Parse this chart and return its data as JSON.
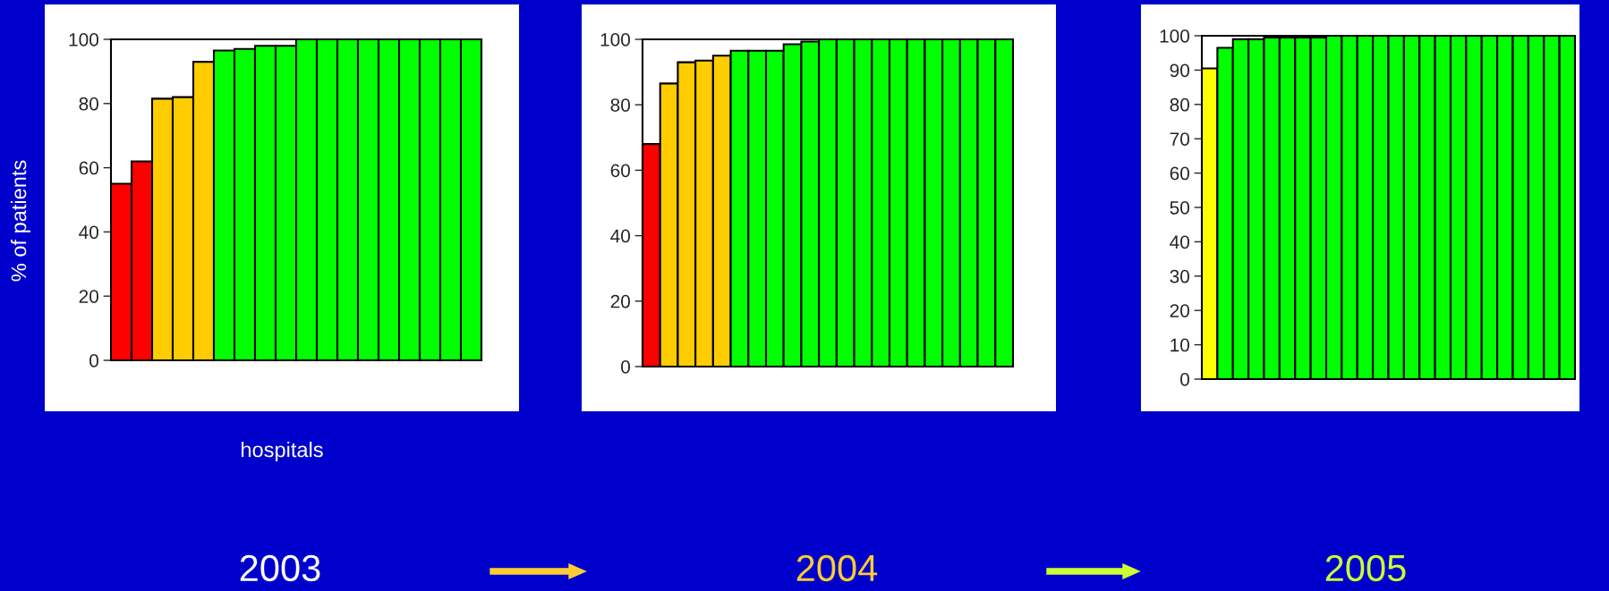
{
  "chart_data": [
    {
      "type": "bar",
      "title": "2003",
      "xlabel": "hospitals",
      "ylabel": "% of patients",
      "categories": [
        null,
        null,
        null,
        null,
        null,
        null,
        null,
        null,
        null,
        null,
        null,
        null,
        null,
        null,
        null,
        null,
        null,
        null
      ],
      "values": [
        55,
        62,
        81.5,
        82,
        93,
        96.5,
        97,
        98,
        98,
        100,
        100,
        100,
        100,
        100,
        100,
        100,
        100,
        100
      ],
      "colors": [
        "#ff0000",
        "#ff0000",
        "#ffcc00",
        "#ffcc00",
        "#ffcc00",
        "#00ff00",
        "#00ff00",
        "#00ff00",
        "#00ff00",
        "#00ff00",
        "#00ff00",
        "#00ff00",
        "#00ff00",
        "#00ff00",
        "#00ff00",
        "#00ff00",
        "#00ff00",
        "#00ff00"
      ],
      "ylim": [
        0,
        100
      ],
      "yticks": [
        0,
        20,
        40,
        60,
        80,
        100
      ],
      "tick_labels": "y"
    },
    {
      "type": "bar",
      "title": "2004",
      "categories": [
        null,
        null,
        null,
        null,
        null,
        null,
        null,
        null,
        null,
        null,
        null,
        null,
        null,
        null,
        null,
        null,
        null,
        null,
        null,
        null,
        null
      ],
      "values": [
        68,
        86.5,
        93,
        93.5,
        95,
        96.5,
        96.5,
        96.5,
        98.5,
        99.3,
        100,
        100,
        100,
        100,
        100,
        100,
        100,
        100,
        100,
        100,
        100
      ],
      "colors": [
        "#ff0000",
        "#ffcc00",
        "#ffcc00",
        "#ffcc00",
        "#ffcc00",
        "#00ff00",
        "#00ff00",
        "#00ff00",
        "#00ff00",
        "#00ff00",
        "#00ff00",
        "#00ff00",
        "#00ff00",
        "#00ff00",
        "#00ff00",
        "#00ff00",
        "#00ff00",
        "#00ff00",
        "#00ff00",
        "#00ff00",
        "#00ff00"
      ],
      "ylim": [
        0,
        100
      ],
      "yticks": [
        0,
        20,
        40,
        60,
        80,
        100
      ],
      "tick_labels": "y"
    },
    {
      "type": "bar",
      "title": "2005",
      "categories": [
        null,
        null,
        null,
        null,
        null,
        null,
        null,
        null,
        null,
        null,
        null,
        null,
        null,
        null,
        null,
        null,
        null,
        null,
        null,
        null,
        null,
        null,
        null,
        null
      ],
      "values": [
        90.5,
        96.5,
        99,
        99,
        99.5,
        99.5,
        99.5,
        99.5,
        100,
        100,
        100,
        100,
        100,
        100,
        100,
        100,
        100,
        100,
        100,
        100,
        100,
        100,
        100,
        100
      ],
      "colors": [
        "#ffff00",
        "#00ff00",
        "#00ff00",
        "#00ff00",
        "#00ff00",
        "#00ff00",
        "#00ff00",
        "#00ff00",
        "#00ff00",
        "#00ff00",
        "#00ff00",
        "#00ff00",
        "#00ff00",
        "#00ff00",
        "#00ff00",
        "#00ff00",
        "#00ff00",
        "#00ff00",
        "#00ff00",
        "#00ff00",
        "#00ff00",
        "#00ff00",
        "#00ff00",
        "#00ff00"
      ],
      "ylim": [
        0,
        100
      ],
      "yticks": [
        0,
        10,
        20,
        30,
        40,
        50,
        60,
        70,
        80,
        90,
        100
      ],
      "tick_labels": "y"
    }
  ]
}
